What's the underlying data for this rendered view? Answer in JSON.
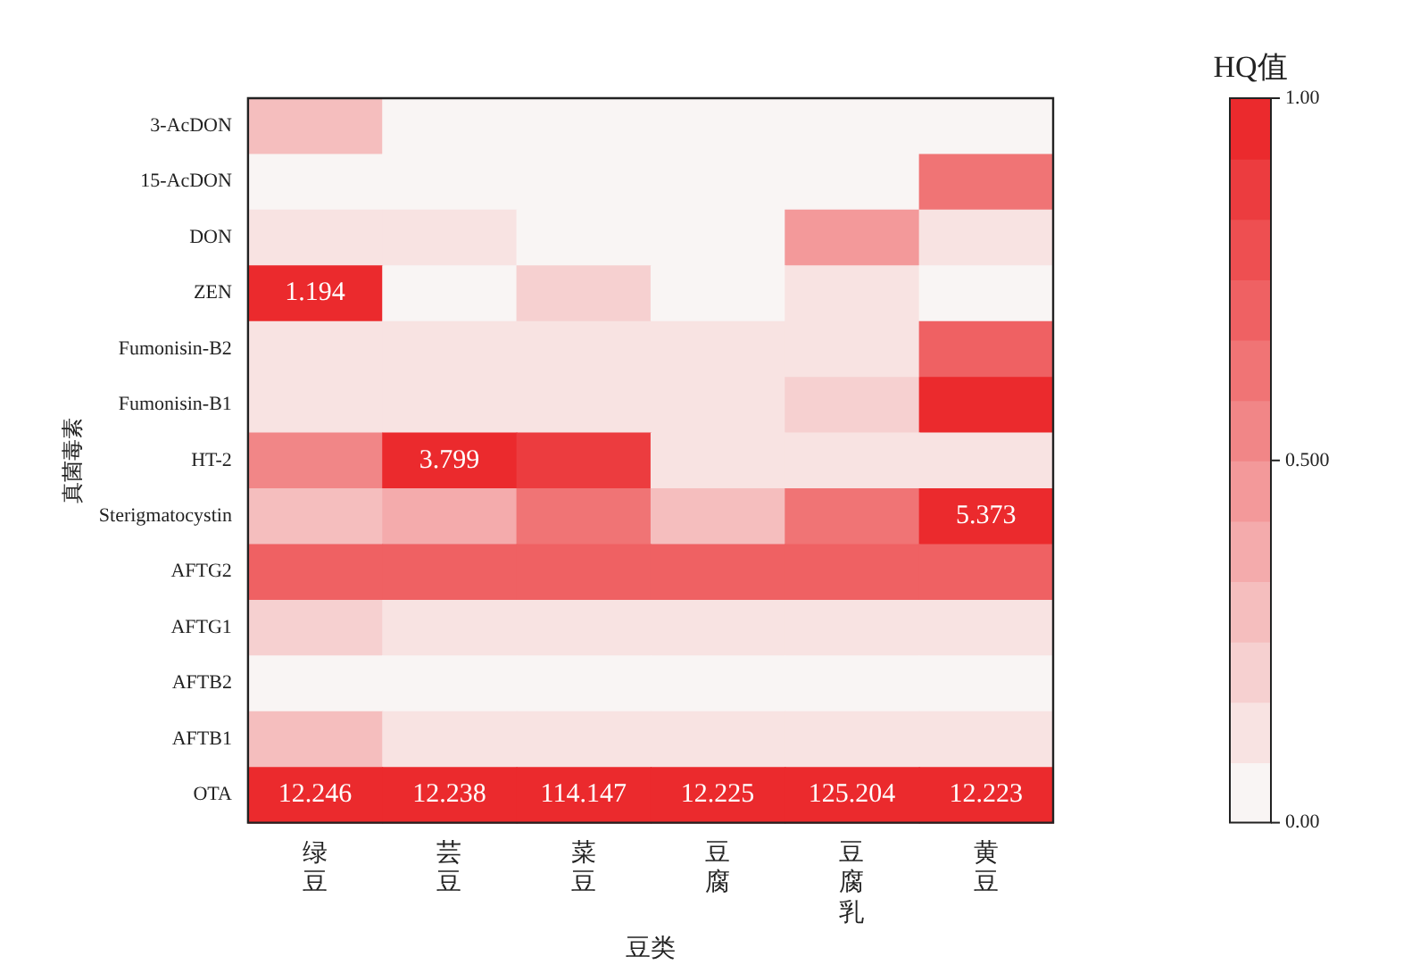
{
  "chart_data": {
    "type": "heatmap",
    "xlabel": "豆类",
    "ylabel": "真菌毒素",
    "clabel": "HQ值",
    "categories": [
      "绿豆",
      "芸豆",
      "菜豆",
      "豆腐",
      "豆腐乳",
      "黄豆"
    ],
    "y_categories": [
      "3-AcDON",
      "15-AcDON",
      "DON",
      "ZEN",
      "Fumonisin-B2",
      "Fumonisin-B1",
      "HT-2",
      "Sterigmatocystin",
      "AFTG2",
      "AFTG1",
      "AFTB2",
      "AFTB1",
      "OTA"
    ],
    "cells": [
      [
        0.29,
        0.04,
        0.04,
        0.04,
        0.04,
        0.04
      ],
      [
        0.04,
        0.04,
        0.04,
        0.04,
        0.04,
        0.62
      ],
      [
        0.12,
        0.12,
        0.04,
        0.04,
        0.46,
        0.12
      ],
      [
        1.194,
        0.04,
        0.21,
        0.04,
        0.12,
        0.04
      ],
      [
        0.12,
        0.12,
        0.12,
        0.12,
        0.12,
        0.71
      ],
      [
        0.12,
        0.12,
        0.12,
        0.12,
        0.21,
        0.96
      ],
      [
        0.54,
        3.799,
        0.87,
        0.12,
        0.12,
        0.12
      ],
      [
        0.29,
        0.37,
        0.62,
        0.29,
        0.62,
        5.373
      ],
      [
        0.71,
        0.71,
        0.71,
        0.71,
        0.71,
        0.71
      ],
      [
        0.21,
        0.12,
        0.12,
        0.12,
        0.12,
        0.12
      ],
      [
        0.04,
        0.04,
        0.04,
        0.04,
        0.04,
        0.04
      ],
      [
        0.29,
        0.12,
        0.12,
        0.12,
        0.12,
        0.12
      ],
      [
        12.246,
        12.238,
        114.147,
        12.225,
        125.204,
        12.223
      ]
    ],
    "cell_labels": [
      [
        null,
        null,
        null,
        null,
        null,
        null
      ],
      [
        null,
        null,
        null,
        null,
        null,
        null
      ],
      [
        null,
        null,
        null,
        null,
        null,
        null
      ],
      [
        "1.194",
        null,
        null,
        null,
        null,
        null
      ],
      [
        null,
        null,
        null,
        null,
        null,
        null
      ],
      [
        null,
        null,
        null,
        null,
        null,
        null
      ],
      [
        null,
        "3.799",
        null,
        null,
        null,
        null
      ],
      [
        null,
        null,
        null,
        null,
        null,
        "5.373"
      ],
      [
        null,
        null,
        null,
        null,
        null,
        null
      ],
      [
        null,
        null,
        null,
        null,
        null,
        null
      ],
      [
        null,
        null,
        null,
        null,
        null,
        null
      ],
      [
        null,
        null,
        null,
        null,
        null,
        null
      ],
      [
        "12.246",
        "12.238",
        "114.147",
        "12.225",
        "125.204",
        "12.223"
      ]
    ],
    "clim": [
      0,
      1
    ],
    "cticks": [
      {
        "value": 0,
        "label": "0.00"
      },
      {
        "value": 0.5,
        "label": "0.500"
      },
      {
        "value": 1,
        "label": "1.00"
      }
    ]
  }
}
